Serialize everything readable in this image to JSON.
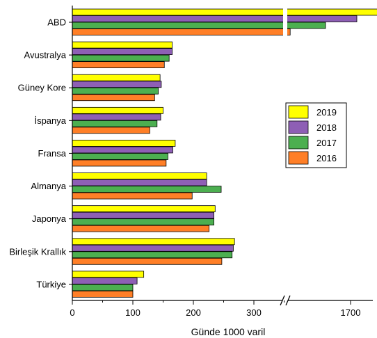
{
  "chart_data": {
    "type": "bar",
    "orientation": "horizontal",
    "title": "",
    "xlabel": "Günde 1000 varil",
    "ylabel": "",
    "categories": [
      "ABD",
      "Avustralya",
      "Güney Kore",
      "İspanya",
      "Fransa",
      "Almanya",
      "Japonya",
      "Birleşik Krallık",
      "Türkiye"
    ],
    "series": [
      {
        "name": "2019",
        "color": "#ffff00",
        "values": [
          1750,
          165,
          145,
          150,
          170,
          222,
          236,
          268,
          118
        ]
      },
      {
        "name": "2018",
        "color": "#8e5fb5",
        "values": [
          1710,
          165,
          147,
          146,
          166,
          222,
          234,
          266,
          107
        ]
      },
      {
        "name": "2017",
        "color": "#4caf50",
        "values": [
          1660,
          160,
          142,
          140,
          158,
          246,
          234,
          264,
          100
        ]
      },
      {
        "name": "2016",
        "color": "#ff7f27",
        "values": [
          375,
          152,
          136,
          128,
          155,
          198,
          226,
          247,
          100
        ]
      }
    ],
    "xaxis": {
      "broken": true,
      "break_range": [
        360,
        1600
      ],
      "ticks": [
        "0",
        "100",
        "200",
        "300",
        "1700"
      ],
      "tick_values": [
        0,
        100,
        200,
        300,
        1700
      ],
      "xlim": [
        0,
        1800
      ]
    },
    "grid": false,
    "legend": {
      "position": "right",
      "entries": [
        "2019",
        "2018",
        "2017",
        "2016"
      ]
    }
  }
}
